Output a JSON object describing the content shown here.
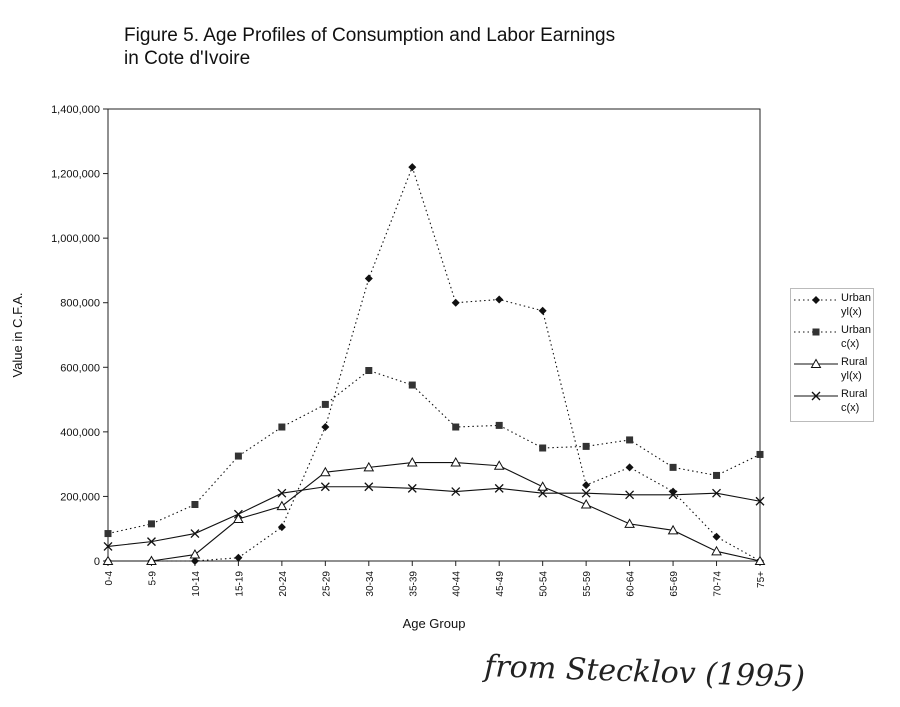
{
  "title": {
    "line1": "Figure 5. Age Profiles of Consumption and Labor Earnings",
    "line2": "in Cote d'Ivoire"
  },
  "handwritten_note": "from Stecklov (1995)",
  "chart_data": {
    "type": "line",
    "xlabel": "Age Group",
    "ylabel": "Value in C.F.A.",
    "categories": [
      "0-4",
      "5-9",
      "10-14",
      "15-19",
      "20-24",
      "25-29",
      "30-34",
      "35-39",
      "40-44",
      "45-49",
      "50-54",
      "55-59",
      "60-64",
      "65-69",
      "70-74",
      "75+"
    ],
    "ylim": [
      0,
      1400000
    ],
    "yticks": [
      0,
      200000,
      400000,
      600000,
      800000,
      1000000,
      1200000,
      1400000
    ],
    "ytick_labels": [
      "0",
      "200,000",
      "400,000",
      "600,000",
      "800,000",
      "1,000,000",
      "1,200,000",
      "1,400,000"
    ],
    "grid": false,
    "legend_position": "right",
    "series": [
      {
        "name": "Urban yl(x)",
        "legend_line1": "Urban",
        "legend_line2": "yl(x)",
        "style": "dotted",
        "marker": "diamond",
        "values": [
          0,
          0,
          0,
          10000,
          105000,
          415000,
          875000,
          1220000,
          800000,
          810000,
          775000,
          235000,
          290000,
          215000,
          75000,
          0
        ]
      },
      {
        "name": "Urban c(x)",
        "legend_line1": "Urban",
        "legend_line2": "c(x)",
        "style": "dotted",
        "marker": "square",
        "values": [
          85000,
          115000,
          175000,
          325000,
          415000,
          485000,
          590000,
          545000,
          415000,
          420000,
          350000,
          355000,
          375000,
          290000,
          265000,
          330000
        ]
      },
      {
        "name": "Rural yl(x)",
        "legend_line1": "Rural",
        "legend_line2": "yl(x)",
        "style": "solid",
        "marker": "triangle",
        "values": [
          0,
          0,
          20000,
          130000,
          170000,
          275000,
          290000,
          305000,
          305000,
          295000,
          230000,
          175000,
          115000,
          95000,
          30000,
          0
        ]
      },
      {
        "name": "Rural c(x)",
        "legend_line1": "Rural",
        "legend_line2": "c(x)",
        "style": "solid",
        "marker": "x",
        "values": [
          45000,
          60000,
          85000,
          145000,
          210000,
          230000,
          230000,
          225000,
          215000,
          225000,
          210000,
          210000,
          205000,
          205000,
          210000,
          185000
        ]
      }
    ]
  }
}
